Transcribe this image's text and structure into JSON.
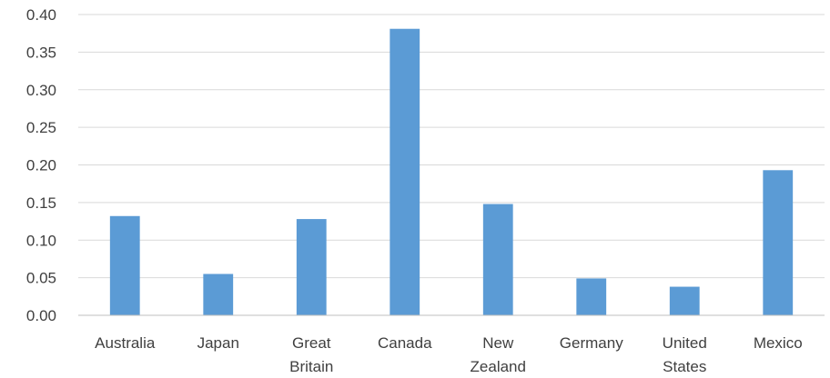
{
  "chart_data": {
    "type": "bar",
    "title": "",
    "xlabel": "",
    "ylabel": "",
    "categories": [
      "Australia",
      "Japan",
      "Great Britain",
      "Canada",
      "New Zealand",
      "Germany",
      "United States",
      "Mexico"
    ],
    "category_lines": [
      [
        "Australia"
      ],
      [
        "Japan"
      ],
      [
        "Great",
        "Britain"
      ],
      [
        "Canada"
      ],
      [
        "New",
        "Zealand"
      ],
      [
        "Germany"
      ],
      [
        "United",
        "States"
      ],
      [
        "Mexico"
      ]
    ],
    "values": [
      0.132,
      0.055,
      0.128,
      0.381,
      0.148,
      0.049,
      0.038,
      0.193
    ],
    "ylim": [
      0,
      0.4
    ],
    "yticks": [
      "0.00",
      "0.05",
      "0.10",
      "0.15",
      "0.20",
      "0.25",
      "0.30",
      "0.35",
      "0.40"
    ],
    "grid": true,
    "legend": "none",
    "bar_color": "#5b9bd5",
    "grid_color": "#d9d9d9",
    "text_color": "#404040"
  }
}
